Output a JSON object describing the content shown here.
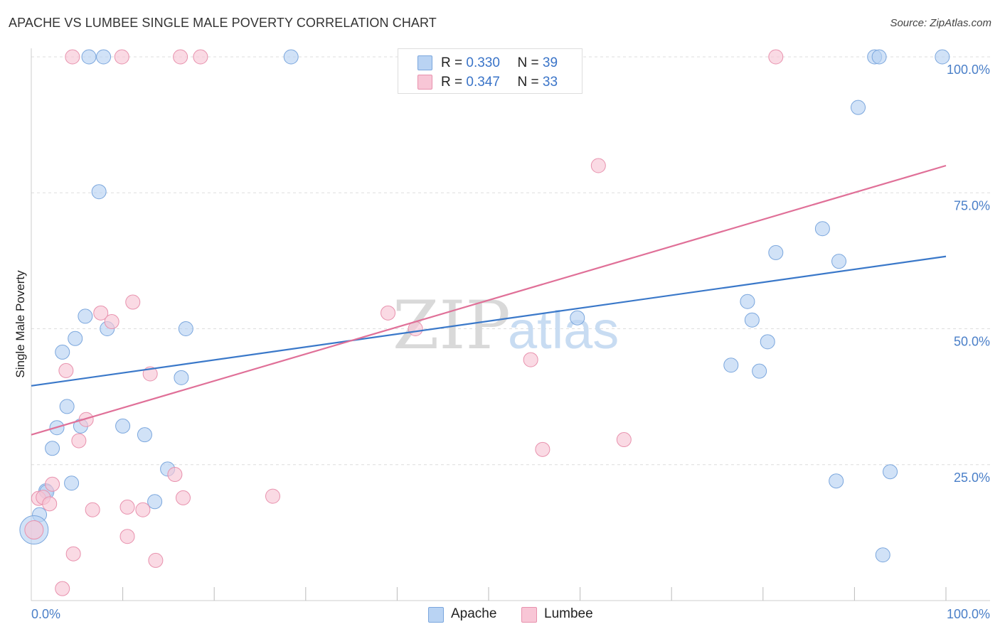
{
  "header": {
    "title": "APACHE VS LUMBEE SINGLE MALE POVERTY CORRELATION CHART",
    "source": "Source: ZipAtlas.com"
  },
  "legend": {
    "apache": {
      "r_label": "R =",
      "r_value": "0.330",
      "n_label": "N =",
      "n_value": "39"
    },
    "lumbee": {
      "r_label": "R =",
      "r_value": "0.347",
      "n_label": "N =",
      "n_value": "33"
    }
  },
  "bottom_legend": {
    "apache": "Apache",
    "lumbee": "Lumbee"
  },
  "colors": {
    "apache_fill": "#b9d3f3",
    "apache_stroke": "#7aa6dd",
    "apache_line": "#3a78c9",
    "lumbee_fill": "#f8c6d6",
    "lumbee_stroke": "#e891ad",
    "lumbee_line": "#e07098",
    "grid": "#dddddd",
    "tick_label": "#4a7fc8"
  },
  "chart_data": {
    "type": "scatter",
    "title": "APACHE VS LUMBEE SINGLE MALE POVERTY CORRELATION CHART",
    "xlabel": "",
    "ylabel": "Single Male Poverty",
    "xlim": [
      0,
      100
    ],
    "ylim": [
      0,
      100
    ],
    "x_tick_labels": [
      "0.0%",
      "100.0%"
    ],
    "y_tick_labels": [
      "25.0%",
      "50.0%",
      "75.0%",
      "100.0%"
    ],
    "y_ticks": [
      25,
      50,
      75,
      100
    ],
    "grid": "horizontal dashed",
    "watermark": {
      "zip": "ZIP",
      "atlas": "atlas"
    },
    "series": [
      {
        "name": "Apache",
        "regression": {
          "x": [
            0,
            100
          ],
          "y": [
            39.5,
            63.3
          ]
        },
        "points": [
          [
            6.3,
            100
          ],
          [
            7.9,
            100
          ],
          [
            28.4,
            100
          ],
          [
            92.2,
            100
          ],
          [
            92.7,
            100
          ],
          [
            99.6,
            100
          ],
          [
            90.4,
            90.7
          ],
          [
            7.4,
            75.2
          ],
          [
            86.5,
            68.4
          ],
          [
            81.4,
            64.0
          ],
          [
            88.3,
            62.4
          ],
          [
            78.3,
            55.0
          ],
          [
            59.7,
            52.0
          ],
          [
            5.9,
            52.3
          ],
          [
            16.9,
            50.0
          ],
          [
            8.3,
            50.0
          ],
          [
            78.8,
            51.6
          ],
          [
            4.8,
            48.2
          ],
          [
            80.5,
            47.6
          ],
          [
            3.4,
            45.7
          ],
          [
            76.5,
            43.3
          ],
          [
            79.6,
            42.2
          ],
          [
            16.4,
            41.0
          ],
          [
            3.9,
            35.7
          ],
          [
            2.8,
            31.8
          ],
          [
            5.4,
            32.1
          ],
          [
            10.0,
            32.1
          ],
          [
            12.4,
            30.5
          ],
          [
            2.3,
            28.0
          ],
          [
            14.9,
            24.2
          ],
          [
            93.9,
            23.7
          ],
          [
            4.4,
            21.6
          ],
          [
            88.0,
            22.0
          ],
          [
            1.6,
            20.2
          ],
          [
            1.7,
            20.0
          ],
          [
            13.5,
            18.2
          ],
          [
            0.9,
            15.8
          ],
          [
            0.3,
            13.0
          ],
          [
            93.1,
            8.4
          ]
        ],
        "sizes": [
          10,
          10,
          10,
          10,
          10,
          10,
          10,
          10,
          10,
          10,
          10,
          10,
          10,
          10,
          10,
          10,
          10,
          10,
          10,
          10,
          10,
          10,
          10,
          10,
          10,
          10,
          10,
          10,
          10,
          10,
          10,
          10,
          10,
          10,
          10,
          10,
          10,
          20,
          10
        ]
      },
      {
        "name": "Lumbee",
        "regression": {
          "x": [
            0,
            100
          ],
          "y": [
            30.5,
            80.0
          ]
        },
        "points": [
          [
            4.5,
            100
          ],
          [
            9.9,
            100
          ],
          [
            16.3,
            100
          ],
          [
            18.5,
            100
          ],
          [
            81.4,
            100
          ],
          [
            62.0,
            80.0
          ],
          [
            11.1,
            54.9
          ],
          [
            7.6,
            52.9
          ],
          [
            39.0,
            52.9
          ],
          [
            8.8,
            51.3
          ],
          [
            42.0,
            50.0
          ],
          [
            3.8,
            42.3
          ],
          [
            13.0,
            41.7
          ],
          [
            54.6,
            44.3
          ],
          [
            6.0,
            33.3
          ],
          [
            5.2,
            29.4
          ],
          [
            55.9,
            27.8
          ],
          [
            64.8,
            29.6
          ],
          [
            15.7,
            23.2
          ],
          [
            2.3,
            21.4
          ],
          [
            0.8,
            18.8
          ],
          [
            1.3,
            19.0
          ],
          [
            2.0,
            17.8
          ],
          [
            16.6,
            18.9
          ],
          [
            26.4,
            19.2
          ],
          [
            6.7,
            16.7
          ],
          [
            10.5,
            17.2
          ],
          [
            12.2,
            16.7
          ],
          [
            10.5,
            11.8
          ],
          [
            4.6,
            8.6
          ],
          [
            13.6,
            7.4
          ],
          [
            3.4,
            2.2
          ],
          [
            0.3,
            13.0
          ]
        ],
        "sizes": [
          10,
          10,
          10,
          10,
          10,
          10,
          10,
          10,
          10,
          10,
          10,
          10,
          10,
          10,
          10,
          10,
          10,
          10,
          10,
          10,
          10,
          10,
          10,
          10,
          10,
          10,
          10,
          10,
          10,
          10,
          10,
          10,
          13
        ]
      }
    ]
  }
}
